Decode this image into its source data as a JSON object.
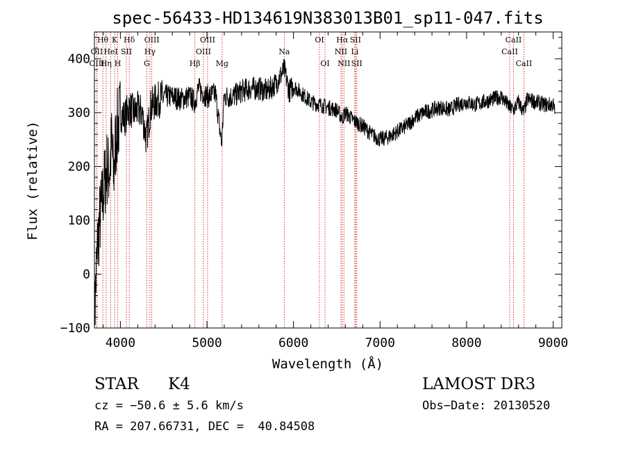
{
  "chart_data": {
    "type": "line",
    "title": "spec-56433-HD134619N383013B01_sp11-047.fits",
    "xlabel": "Wavelength (Å)",
    "ylabel": "Flux (relative)",
    "xlim": [
      3700,
      9100
    ],
    "ylim": [
      -100,
      450
    ],
    "xticks": [
      "4000",
      "5000",
      "6000",
      "7000",
      "8000",
      "9000"
    ],
    "yticks": [
      "−100",
      "0",
      "100",
      "200",
      "300",
      "400"
    ],
    "grid": false,
    "series": [
      {
        "x": [
          3700,
          3720,
          3740,
          3760,
          3780,
          3800,
          3820,
          3840,
          3860,
          3880,
          3900,
          3920,
          3940,
          3960,
          3980,
          4000,
          4050,
          4100,
          4150,
          4200,
          4250,
          4300,
          4350,
          4400,
          4450,
          4500,
          4600,
          4700,
          4800,
          4860,
          4900,
          5000,
          5100,
          5170,
          5185,
          5200,
          5300,
          5400,
          5500,
          5600,
          5700,
          5800,
          5893,
          5950,
          6000,
          6100,
          6200,
          6300,
          6400,
          6500,
          6563,
          6600,
          6700,
          6800,
          6900,
          7000,
          7100,
          7200,
          7300,
          7400,
          7500,
          7600,
          7700,
          7800,
          7900,
          8000,
          8100,
          8200,
          8300,
          8400,
          8498,
          8542,
          8600,
          8662,
          8700,
          8800,
          8900,
          9000,
          9020
        ],
        "y": [
          -90,
          0,
          60,
          100,
          120,
          150,
          170,
          200,
          190,
          200,
          250,
          180,
          230,
          270,
          280,
          300,
          290,
          310,
          300,
          305,
          300,
          250,
          310,
          320,
          325,
          330,
          330,
          325,
          330,
          320,
          345,
          330,
          335,
          240,
          290,
          330,
          330,
          340,
          345,
          345,
          340,
          355,
          380,
          340,
          350,
          335,
          320,
          315,
          310,
          305,
          290,
          300,
          285,
          275,
          260,
          250,
          255,
          265,
          275,
          290,
          300,
          305,
          310,
          305,
          315,
          320,
          315,
          320,
          325,
          330,
          310,
          305,
          320,
          300,
          325,
          320,
          315,
          315,
          300
        ]
      }
    ],
    "lines": [
      {
        "label": "Hθ",
        "x": 3797,
        "row": 0
      },
      {
        "label": "OII",
        "x": 3727,
        "row": 1
      },
      {
        "label": "OIII",
        "x": 3727,
        "row": 2
      },
      {
        "label": "K",
        "x": 3934,
        "row": 0
      },
      {
        "label": "HeI",
        "x": 3889,
        "row": 1
      },
      {
        "label": "Hη",
        "x": 3835,
        "row": 2
      },
      {
        "label": "H",
        "x": 3969,
        "row": 2
      },
      {
        "label": "Hδ",
        "x": 4102,
        "row": 0
      },
      {
        "label": "SII",
        "x": 4069,
        "row": 1
      },
      {
        "label": "OIII",
        "x": 4363,
        "row": 0
      },
      {
        "label": "Hγ",
        "x": 4341,
        "row": 1
      },
      {
        "label": "G",
        "x": 4305,
        "row": 2
      },
      {
        "label": "OIII",
        "x": 5007,
        "row": 0
      },
      {
        "label": "OIII",
        "x": 4959,
        "row": 1
      },
      {
        "label": "Hβ",
        "x": 4861,
        "row": 2
      },
      {
        "label": "Mg",
        "x": 5175,
        "row": 2
      },
      {
        "label": "Na",
        "x": 5893,
        "row": 1
      },
      {
        "label": "OI",
        "x": 6300,
        "row": 0
      },
      {
        "label": "OI",
        "x": 6364,
        "row": 2
      },
      {
        "label": "Hα",
        "x": 6563,
        "row": 0
      },
      {
        "label": "SII",
        "x": 6716,
        "row": 0
      },
      {
        "label": "NII",
        "x": 6548,
        "row": 1
      },
      {
        "label": "Li",
        "x": 6708,
        "row": 1
      },
      {
        "label": "NII",
        "x": 6583,
        "row": 2
      },
      {
        "label": "SII",
        "x": 6731,
        "row": 2
      },
      {
        "label": "CaII",
        "x": 8542,
        "row": 0
      },
      {
        "label": "CaII",
        "x": 8498,
        "row": 1
      },
      {
        "label": "CaII",
        "x": 8662,
        "row": 2
      }
    ]
  },
  "info": {
    "object_class": "STAR",
    "subclass": "K4",
    "survey": "LAMOST DR3",
    "redshift": "cz = −50.6 ± 5.6 km/s",
    "obs_date": "Obs−Date: 20130520",
    "coords": "RA = 207.66731, DEC =  40.84508"
  }
}
